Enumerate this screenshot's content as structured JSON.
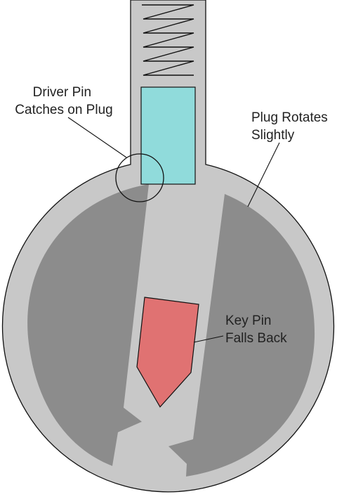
{
  "labels": {
    "driver_pin": [
      "Driver Pin",
      "Catches on Plug"
    ],
    "plug_rotates": [
      "Plug Rotates",
      "Slightly"
    ],
    "key_pin": [
      "Key Pin",
      "Falls Back"
    ]
  },
  "colors": {
    "housing": "#c8c8c8",
    "plug": "#8c8c8c",
    "driver_pin": "#90dbdb",
    "key_pin": "#e07272",
    "outline": "#111111"
  }
}
